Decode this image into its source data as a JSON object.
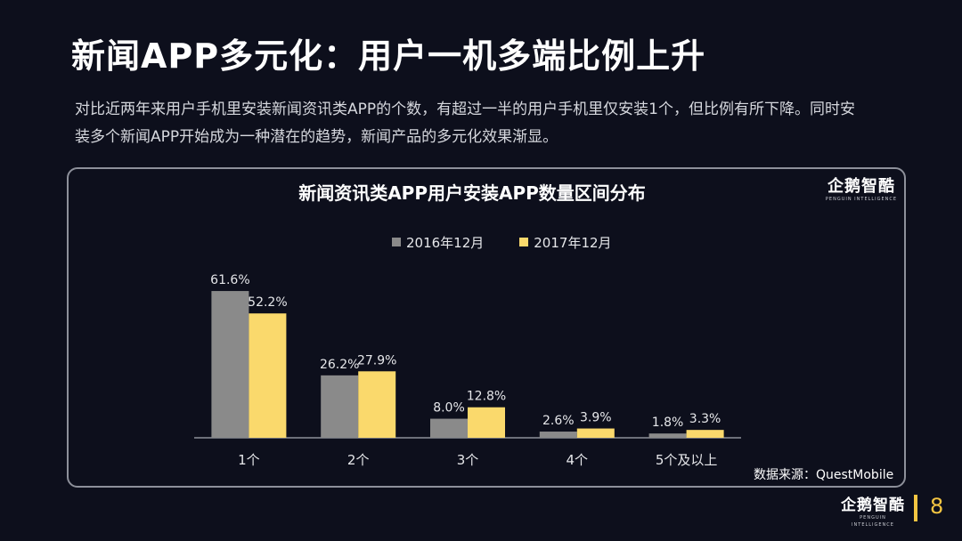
{
  "slide": {
    "title": "新闻APP多元化：用户一机多端比例上升",
    "description": "对比近两年来用户手机里安装新闻资讯类APP的个数，有超过一半的用户手机里仅安装1个，但比例有所下降。同时安装多个新闻APP开始成为一种潜在的趋势，新闻产品的多元化效果渐显。",
    "source": "数据来源：QuestMobile",
    "page_number": "8",
    "logo_text": "企鹅智酷",
    "logo_sub": "PENGUIN INTELLIGENCE"
  },
  "chart_data": {
    "type": "bar",
    "title": "新闻资讯类APP用户安装APP数量区间分布",
    "categories": [
      "1个",
      "2个",
      "3个",
      "4个",
      "5个及以上"
    ],
    "series": [
      {
        "name": "2016年12月",
        "values": [
          61.6,
          26.2,
          8.0,
          2.6,
          1.8
        ],
        "labels": [
          "61.6%",
          "26.2%",
          "8.0%",
          "2.6%",
          "1.8%"
        ],
        "color": "#8a8a8a"
      },
      {
        "name": "2017年12月",
        "values": [
          52.2,
          27.9,
          12.8,
          3.9,
          3.3
        ],
        "labels": [
          "52.2%",
          "27.9%",
          "12.8%",
          "3.9%",
          "3.3%"
        ],
        "color": "#fad96c"
      }
    ],
    "ylim": [
      0,
      62
    ],
    "xlabel": "",
    "ylabel": "",
    "legend": "top-center",
    "grid": false
  },
  "colors": {
    "background": "#0d0f1c",
    "accent": "#f4c542"
  }
}
